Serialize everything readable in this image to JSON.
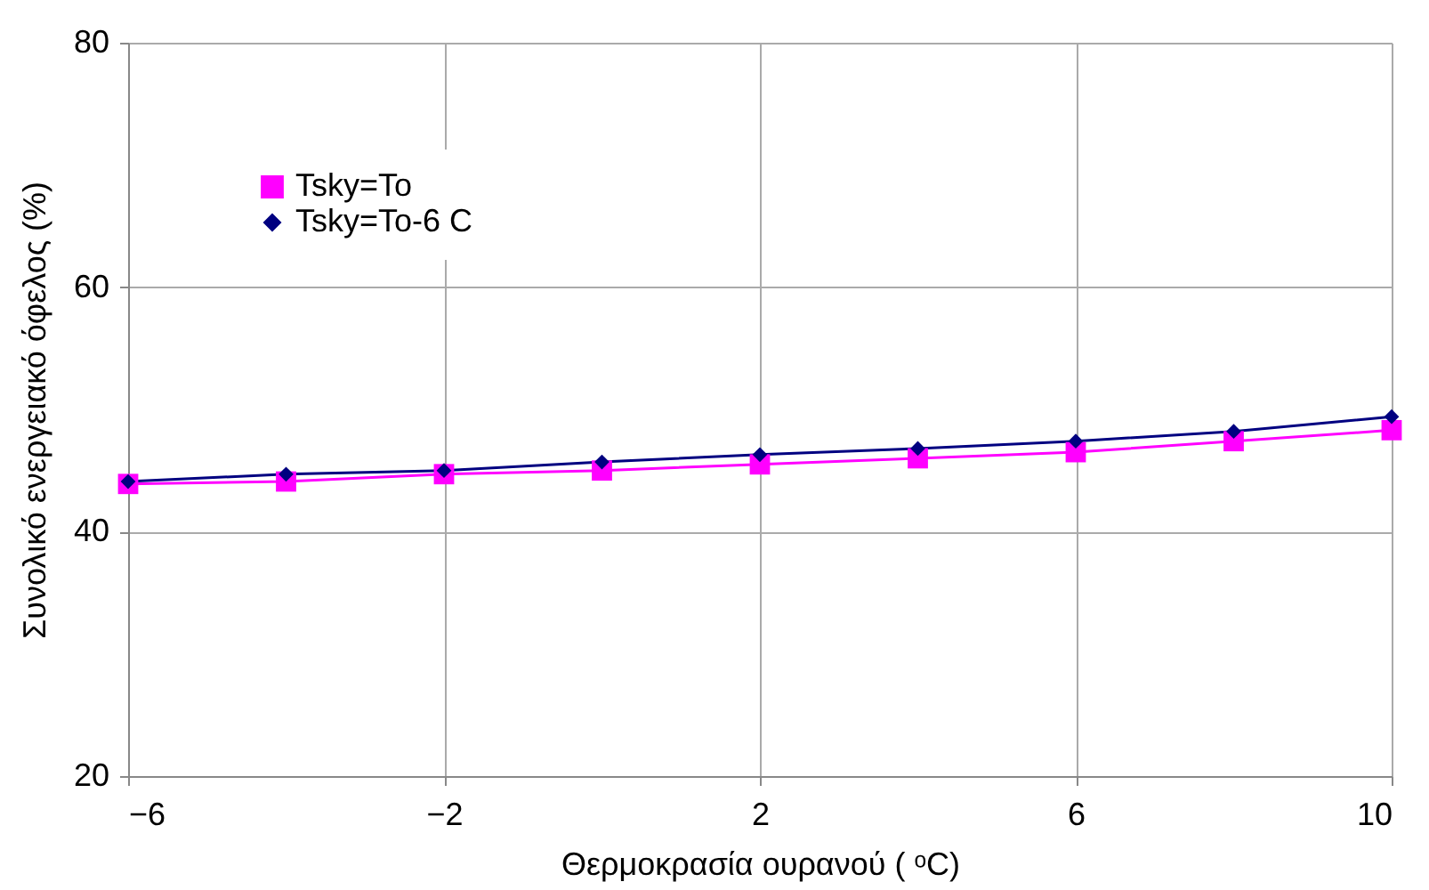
{
  "chart_data": {
    "type": "line",
    "xlabel": "Θερμοκρασία ουρανού ( ᵒC)",
    "ylabel": "Συνολικό ενεργειακό όφελος (%)",
    "x": [
      -6,
      -4,
      -2,
      0,
      2,
      4,
      6,
      8,
      10
    ],
    "series": [
      {
        "name": "Tsky=To",
        "color": "#ff00ff",
        "marker": "square",
        "values": [
          43.9,
          44.1,
          44.7,
          45.0,
          45.5,
          46.0,
          46.5,
          47.4,
          48.3
        ]
      },
      {
        "name": "Tsky=To-6 C",
        "color": "#000080",
        "marker": "diamond",
        "values": [
          44.1,
          44.7,
          45.0,
          45.7,
          46.3,
          46.8,
          47.4,
          48.2,
          49.4
        ]
      }
    ],
    "xlim": [
      -6,
      10
    ],
    "xticks": [
      -6,
      -2,
      2,
      6,
      10
    ],
    "ylim": [
      20,
      80
    ],
    "yticks": [
      20,
      40,
      60,
      80
    ],
    "grid": true,
    "legend": "top left",
    "line_style": "solid"
  }
}
